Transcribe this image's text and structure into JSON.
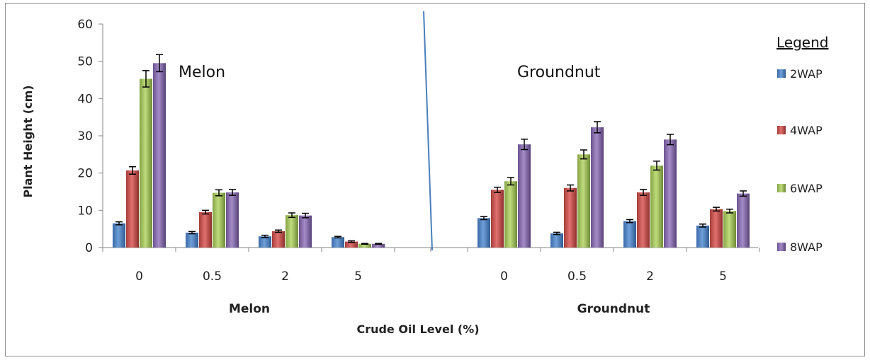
{
  "chart_data": {
    "type": "bar",
    "ylabel": "Plant Height (cm)",
    "xlabel": "Crude Oil Level (%)",
    "ylim": [
      0,
      60
    ],
    "yticks": [
      0,
      10,
      20,
      30,
      40,
      50,
      60
    ],
    "error_bars": true,
    "groups": [
      {
        "name": "Melon",
        "annotation": "Melon",
        "categories": [
          "0",
          "0.5",
          "2",
          "5"
        ],
        "series": [
          {
            "name": "2WAP",
            "values": [
              6.5,
              4.0,
              3.0,
              2.8
            ],
            "errors": [
              0.4,
              0.3,
              0.3,
              0.2
            ]
          },
          {
            "name": "4WAP",
            "values": [
              20.7,
              9.5,
              4.4,
              1.6
            ],
            "errors": [
              1.0,
              0.5,
              0.3,
              0.2
            ]
          },
          {
            "name": "6WAP",
            "values": [
              45.3,
              14.7,
              8.7,
              1.0
            ],
            "errors": [
              2.2,
              0.8,
              0.6,
              0.1
            ]
          },
          {
            "name": "8WAP",
            "values": [
              49.5,
              14.8,
              8.6,
              1.0
            ],
            "errors": [
              2.3,
              0.8,
              0.6,
              0.1
            ]
          }
        ]
      },
      {
        "name": "Groundnut",
        "annotation": "Groundnut",
        "categories": [
          "0",
          "0.5",
          "2",
          "5"
        ],
        "series": [
          {
            "name": "2WAP",
            "values": [
              7.9,
              3.8,
              7.1,
              5.9
            ],
            "errors": [
              0.4,
              0.3,
              0.4,
              0.4
            ]
          },
          {
            "name": "4WAP",
            "values": [
              15.5,
              16.0,
              14.8,
              10.3
            ],
            "errors": [
              0.7,
              0.8,
              0.8,
              0.5
            ]
          },
          {
            "name": "6WAP",
            "values": [
              17.8,
              25.0,
              22.0,
              9.8
            ],
            "errors": [
              1.0,
              1.2,
              1.2,
              0.5
            ]
          },
          {
            "name": "8WAP",
            "values": [
              27.7,
              32.3,
              29.0,
              14.5
            ],
            "errors": [
              1.4,
              1.5,
              1.4,
              0.7
            ]
          }
        ]
      }
    ],
    "legend": {
      "title": "Legend",
      "placement": "right",
      "entries": [
        "2WAP",
        "4WAP",
        "6WAP",
        "8WAP"
      ]
    },
    "colors": {
      "2WAP": "#4a7ebb",
      "4WAP": "#c0504d",
      "6WAP": "#9bbb59",
      "8WAP": "#8064a2",
      "divider": "#4a7ebb"
    }
  }
}
